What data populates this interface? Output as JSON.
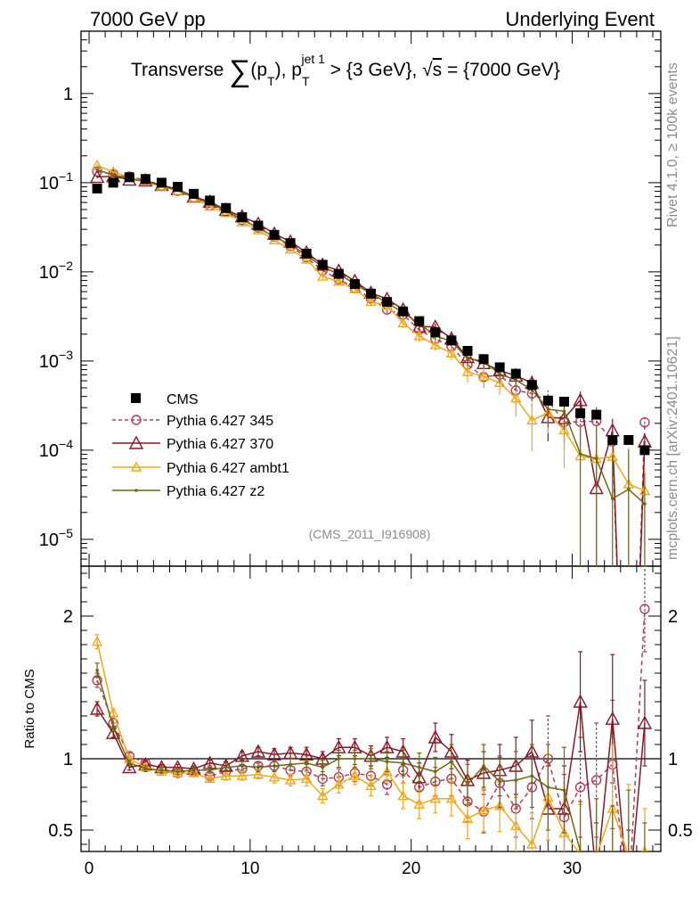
{
  "header": {
    "left": "7000 GeV pp",
    "right": "Underlying Event"
  },
  "title": {
    "prefix": "Transverse ",
    "sum": "∑",
    "pt_open": "(p",
    "pt_sub": "T",
    "mid": "), p",
    "jet_sup": "jet 1",
    "jet_sub": "T",
    "cond": " > {3 GeV}, ",
    "sqrt": "√",
    "s": "s",
    "energy": " = {7000 GeV}"
  },
  "side_labels": {
    "rivet": "Rivet 4.1.0, ≥ 100k events",
    "mcplots": "mcplots.cern.ch [arXiv:2401.10621]"
  },
  "analysis_id": "(CMS_2011_I916908)",
  "ratio_label": "Ratio to CMS",
  "colors": {
    "cms": "#000000",
    "p345": "#b33b5a",
    "p370": "#8b1624",
    "ambt1": "#f0a818",
    "z2": "#6b6b0e"
  },
  "chart_data": {
    "type": "line",
    "title": "Transverse ∑(pT), pT jet 1 > {3 GeV}, √s = {7000 GeV}",
    "xlabel": "",
    "ylabel_main": "",
    "ylabel_ratio": "Ratio to CMS",
    "x_range": [
      -0.5,
      35.5
    ],
    "main_y_range": [
      5e-06,
      5
    ],
    "main_y_scale": "log",
    "ratio_y_range": [
      0.35,
      2.35
    ],
    "main_y_ticks": [
      {
        "v": 1,
        "label": "1"
      },
      {
        "v": 0.1,
        "label": "10",
        "exp": "−1"
      },
      {
        "v": 0.01,
        "label": "10",
        "exp": "−2"
      },
      {
        "v": 0.001,
        "label": "10",
        "exp": "−3"
      },
      {
        "v": 0.0001,
        "label": "10",
        "exp": "−4"
      },
      {
        "v": 1e-05,
        "label": "10",
        "exp": "−5"
      }
    ],
    "ratio_y_ticks": [
      {
        "v": 0.5,
        "label": "0.5"
      },
      {
        "v": 1,
        "label": "1"
      },
      {
        "v": 2,
        "label": "2"
      }
    ],
    "x_ticks": [
      {
        "v": 0,
        "label": "0"
      },
      {
        "v": 10,
        "label": "10"
      },
      {
        "v": 20,
        "label": "20"
      },
      {
        "v": 30,
        "label": "30"
      }
    ],
    "x": [
      0.5,
      1.5,
      2.5,
      3.5,
      4.5,
      5.5,
      6.5,
      7.5,
      8.5,
      9.5,
      10.5,
      11.5,
      12.5,
      13.5,
      14.5,
      15.5,
      16.5,
      17.5,
      18.5,
      19.5,
      20.5,
      21.5,
      22.5,
      23.5,
      24.5,
      25.5,
      26.5,
      27.5,
      28.5,
      29.5,
      30.5,
      31.5,
      32.5,
      33.5,
      34.5
    ],
    "data": {
      "name": "CMS",
      "values": [
        0.086,
        0.1,
        0.115,
        0.11,
        0.1,
        0.09,
        0.075,
        0.063,
        0.052,
        0.041,
        0.033,
        0.026,
        0.021,
        0.016,
        0.012,
        0.0095,
        0.0073,
        0.0057,
        0.0046,
        0.0036,
        0.0028,
        0.0021,
        0.0017,
        0.0013,
        0.00105,
        0.00085,
        0.00072,
        0.00054,
        0.00036,
        0.00035,
        0.00026,
        0.00025,
        0.00013,
        0.00013,
        0.0001
      ]
    },
    "series": [
      {
        "name": "Pythia 6.427 345",
        "key": "p345",
        "marker": "circle",
        "dashed": true,
        "ratio": [
          1.55,
          1.25,
          1.02,
          0.97,
          0.93,
          0.9,
          0.91,
          0.88,
          0.91,
          0.93,
          0.95,
          0.95,
          0.92,
          0.91,
          0.86,
          0.87,
          0.9,
          0.88,
          0.82,
          0.92,
          0.8,
          0.84,
          0.86,
          0.7,
          0.63,
          0.83,
          0.65,
          0.8,
          1.0,
          0.59,
          0.8,
          0.85,
          0.96,
          0.0,
          2.05
        ],
        "ratio_err": [
          0.05,
          0.03,
          0.02,
          0.02,
          0.02,
          0.02,
          0.02,
          0.02,
          0.03,
          0.03,
          0.03,
          0.04,
          0.04,
          0.05,
          0.05,
          0.06,
          0.06,
          0.07,
          0.07,
          0.09,
          0.1,
          0.1,
          0.12,
          0.14,
          0.15,
          0.18,
          0.2,
          0.22,
          0.3,
          0.3,
          0.35,
          0.4,
          0.45,
          0.5,
          0.3
        ]
      },
      {
        "name": "Pythia 6.427 370",
        "key": "p370",
        "marker": "triangle",
        "dashed": false,
        "ratio": [
          1.35,
          1.18,
          0.94,
          0.96,
          0.94,
          0.94,
          0.93,
          0.97,
          0.95,
          1.02,
          1.05,
          1.03,
          1.04,
          1.03,
          1.0,
          1.08,
          1.08,
          1.02,
          1.08,
          1.05,
          0.87,
          1.15,
          1.05,
          0.85,
          0.9,
          0.92,
          0.95,
          1.05,
          0.65,
          0.65,
          1.4,
          0.15,
          1.28,
          0.0,
          1.25
        ],
        "ratio_err": [
          0.05,
          0.03,
          0.02,
          0.02,
          0.02,
          0.02,
          0.02,
          0.02,
          0.03,
          0.03,
          0.03,
          0.04,
          0.04,
          0.05,
          0.05,
          0.06,
          0.06,
          0.07,
          0.07,
          0.09,
          0.1,
          0.1,
          0.12,
          0.14,
          0.15,
          0.18,
          0.2,
          0.22,
          0.3,
          0.3,
          0.35,
          0.4,
          0.45,
          0.5,
          0.3
        ]
      },
      {
        "name": "Pythia 6.427 ambt1",
        "key": "ambt1",
        "marker": "triangle-small",
        "dashed": false,
        "ratio": [
          1.82,
          1.32,
          1.0,
          0.94,
          0.91,
          0.9,
          0.9,
          0.86,
          0.88,
          0.88,
          0.89,
          0.87,
          0.85,
          0.86,
          0.74,
          0.82,
          0.88,
          0.81,
          0.91,
          0.74,
          0.68,
          0.72,
          0.72,
          0.58,
          0.64,
          0.67,
          0.53,
          0.4,
          0.73,
          0.48,
          0.33,
          0.32,
          0.65,
          0.32,
          0.35
        ],
        "ratio_err": [
          0.05,
          0.03,
          0.02,
          0.02,
          0.02,
          0.02,
          0.02,
          0.02,
          0.03,
          0.03,
          0.03,
          0.04,
          0.04,
          0.05,
          0.05,
          0.06,
          0.06,
          0.07,
          0.07,
          0.09,
          0.1,
          0.1,
          0.12,
          0.14,
          0.15,
          0.18,
          0.2,
          0.22,
          0.3,
          0.3,
          0.35,
          0.4,
          0.45,
          0.5,
          0.3
        ]
      },
      {
        "name": "Pythia 6.427 z2",
        "key": "z2",
        "marker": "dot",
        "dashed": false,
        "ratio": [
          1.62,
          1.22,
          0.97,
          0.93,
          0.92,
          0.91,
          0.92,
          0.92,
          0.94,
          0.95,
          0.94,
          0.95,
          0.96,
          0.97,
          0.94,
          1.0,
          1.0,
          1.0,
          0.98,
          0.97,
          0.94,
          0.91,
          0.98,
          0.82,
          0.95,
          0.84,
          0.85,
          0.88,
          0.8,
          0.78,
          0.35,
          0.32,
          0.22,
          0.28,
          0.25
        ],
        "ratio_err": [
          0.05,
          0.03,
          0.02,
          0.02,
          0.02,
          0.02,
          0.02,
          0.02,
          0.03,
          0.03,
          0.03,
          0.04,
          0.04,
          0.05,
          0.05,
          0.06,
          0.06,
          0.07,
          0.07,
          0.09,
          0.1,
          0.1,
          0.12,
          0.14,
          0.15,
          0.18,
          0.2,
          0.22,
          0.3,
          0.3,
          0.35,
          0.4,
          0.45,
          0.5,
          0.3
        ]
      }
    ]
  }
}
